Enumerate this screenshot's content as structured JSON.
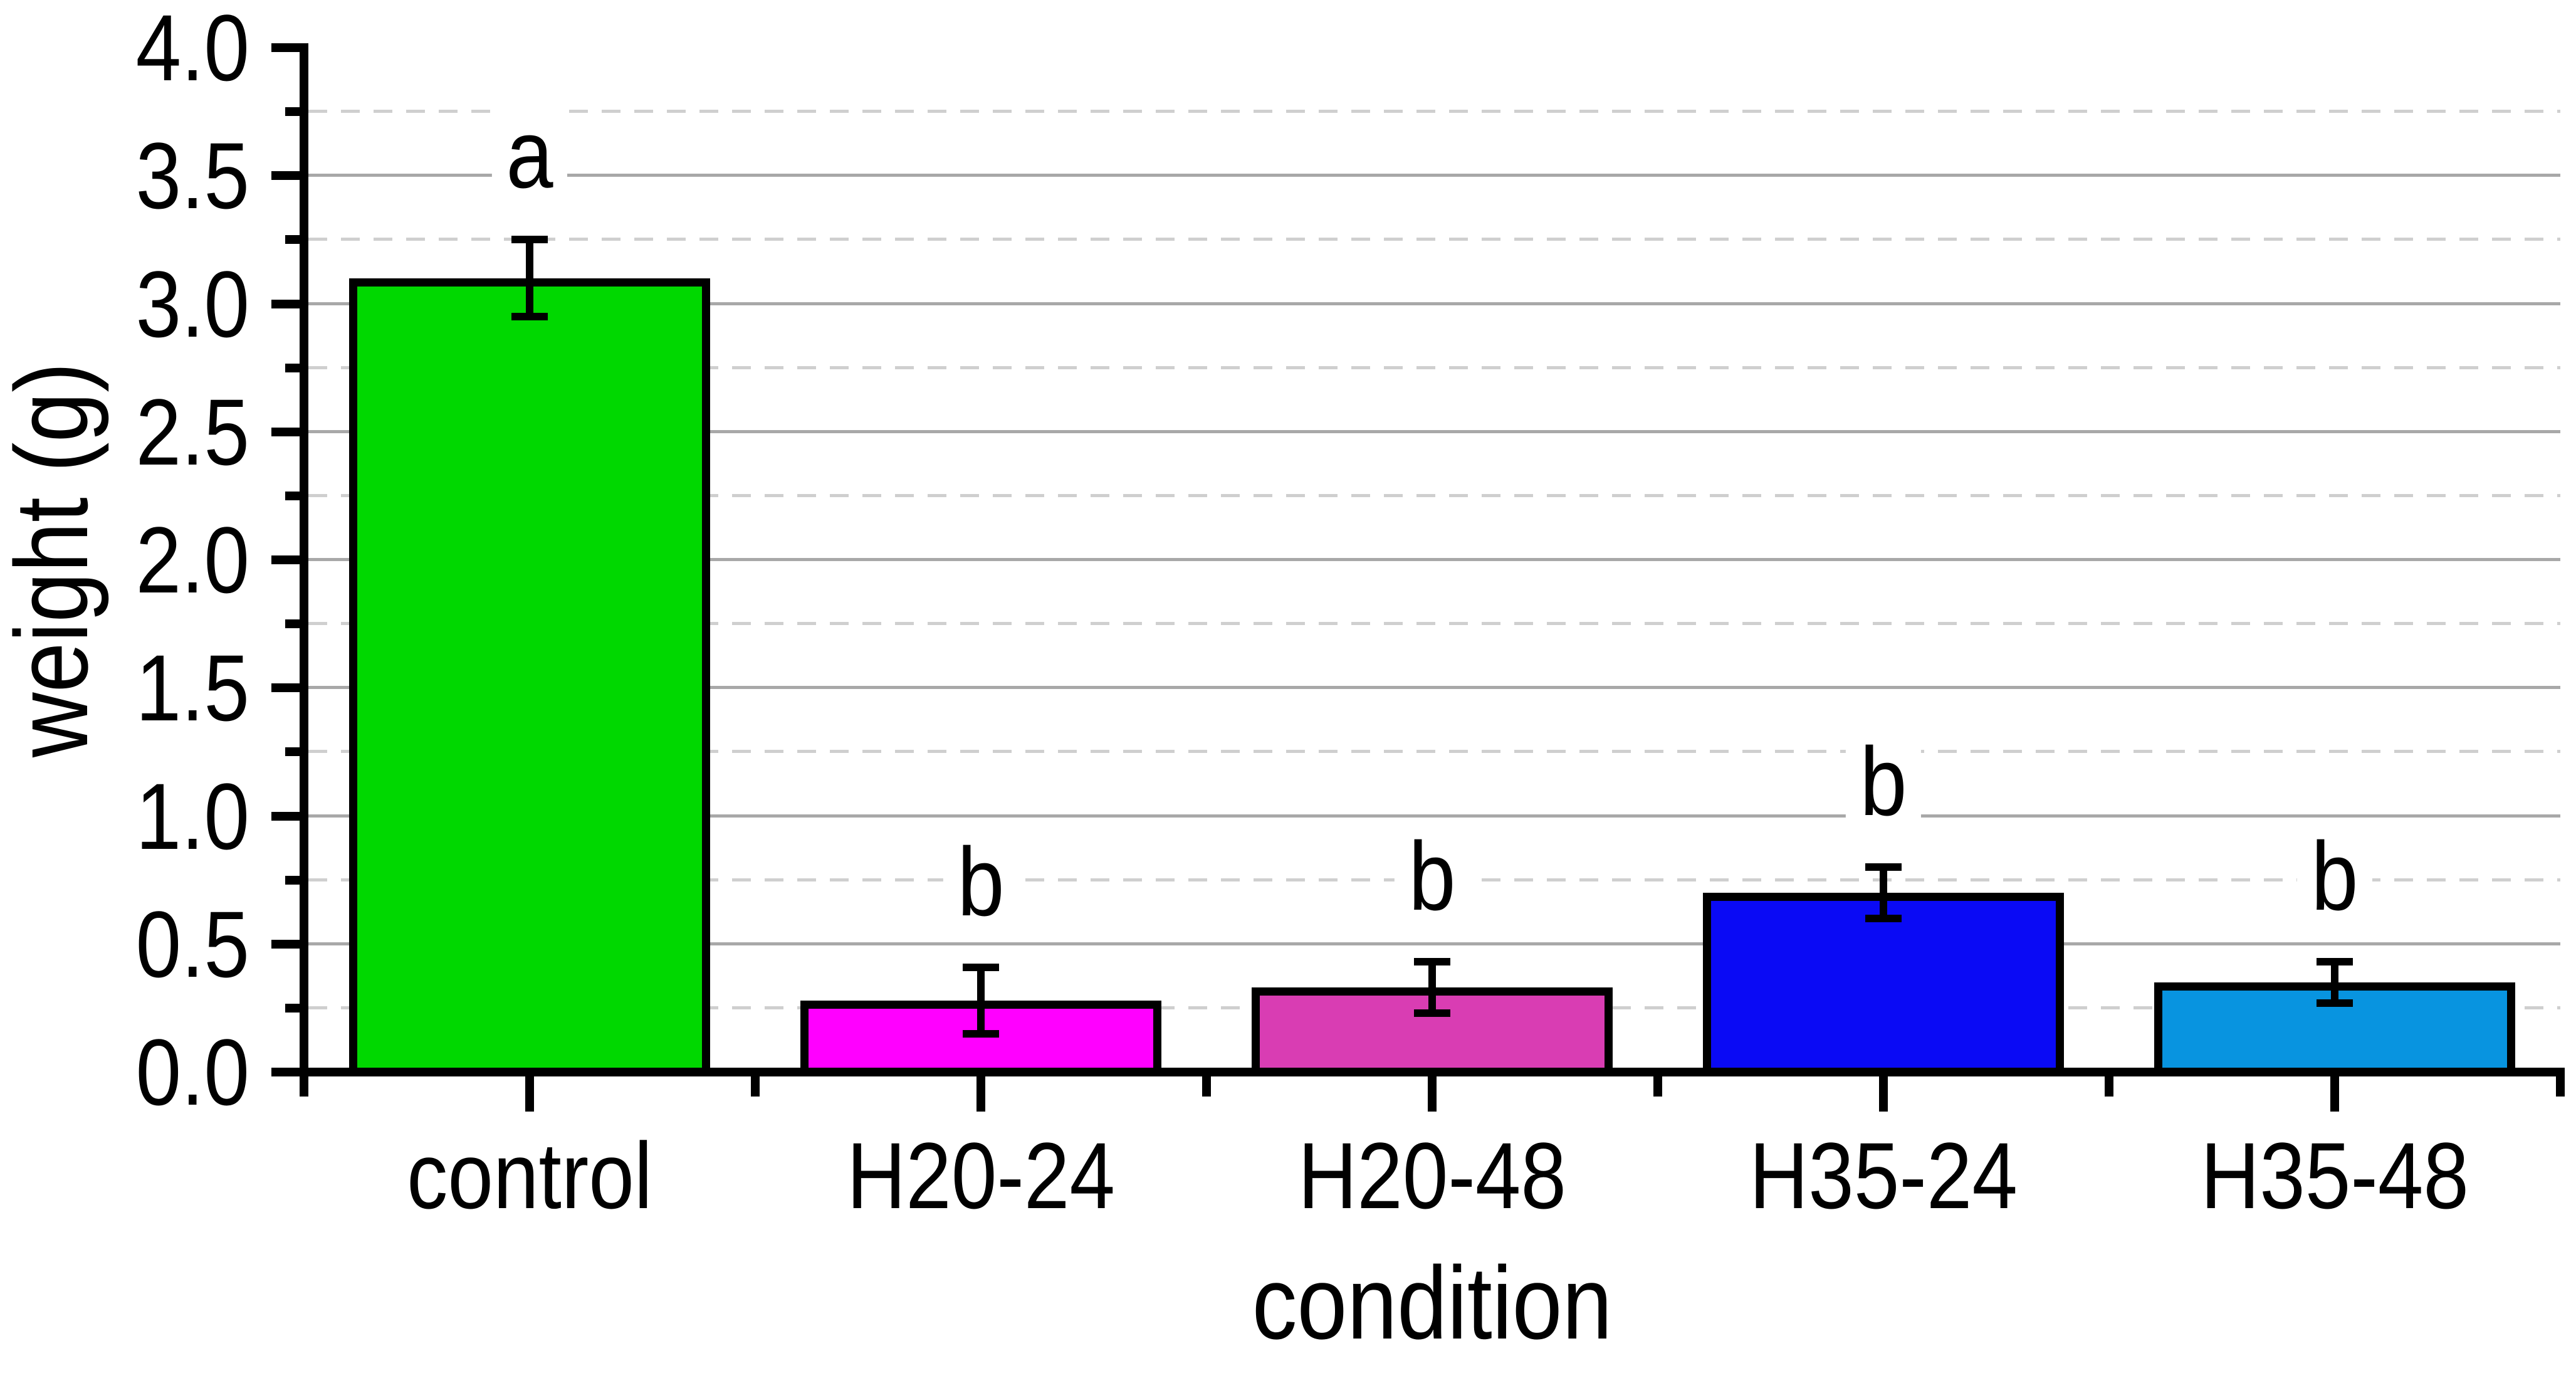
{
  "chart_data": {
    "type": "bar",
    "title": "",
    "xlabel": "condition",
    "ylabel": "weight (g)",
    "categories": [
      "control",
      "H20-24",
      "H20-48",
      "H35-24",
      "H35-48"
    ],
    "series": [
      {
        "name": "weight",
        "values": [
          3.1,
          0.28,
          0.33,
          0.7,
          0.35
        ],
        "errors": [
          0.15,
          0.13,
          0.1,
          0.1,
          0.08
        ]
      }
    ],
    "significance_letters": [
      "a",
      "b",
      "b",
      "b",
      "b"
    ],
    "bar_colors": [
      "#00D800",
      "#FF00FF",
      "#D93DB3",
      "#0A0AF5",
      "#0894E0"
    ],
    "bar_edge_color": "#000000",
    "error_bar_color": "#000000",
    "axis_color": "#000000",
    "background": "#FFFFFF",
    "ylim": [
      0.0,
      4.0
    ],
    "ytick_major_step": 0.5,
    "ytick_minor_step": 0.25,
    "ytick_labels": [
      "0.0",
      "0.5",
      "1.0",
      "1.5",
      "2.0",
      "2.5",
      "3.0",
      "3.5",
      "4.0"
    ],
    "grid": {
      "major_style": "solid",
      "major_color": "#A8A8A8",
      "minor_style": "dashed",
      "minor_color": "#CFCFCF",
      "vertical_gridlines": false
    },
    "legend": null
  }
}
